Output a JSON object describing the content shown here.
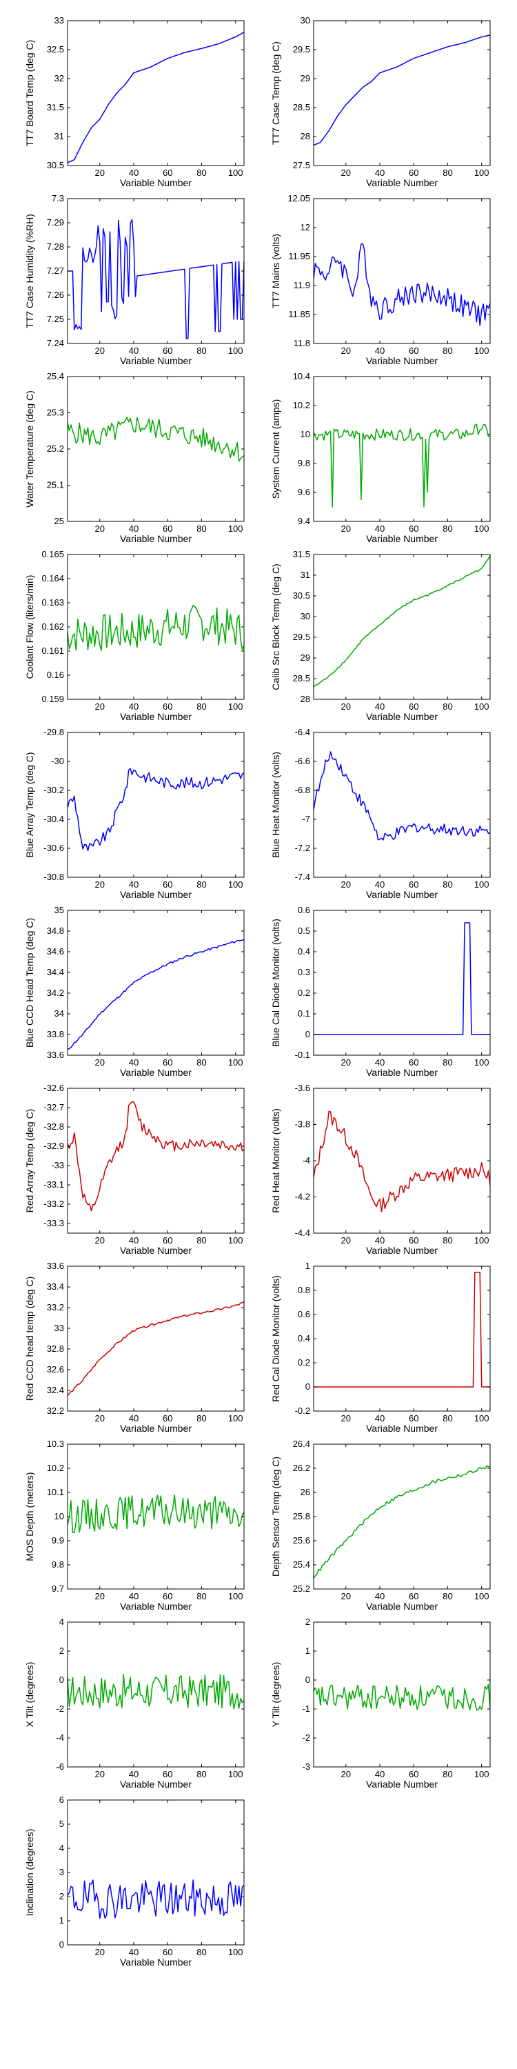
{
  "chart_data": [
    {
      "type": "line",
      "xlabel": "Variable Number",
      "ylabel": "TT7 Board Temp (deg C)",
      "color": "#0000ff",
      "xlim": [
        1,
        105
      ],
      "ylim": [
        30.5,
        33
      ],
      "xticks": [
        20,
        40,
        60,
        80,
        100
      ],
      "yticks": [
        30.5,
        31,
        31.5,
        32,
        32.5,
        33
      ],
      "ytick_labels": [
        "30.5",
        "31",
        "31.5",
        "32",
        "32.5",
        "33"
      ],
      "shape": "smooth",
      "xs": [
        1,
        5,
        10,
        15,
        20,
        25,
        30,
        35,
        40,
        50,
        60,
        70,
        80,
        90,
        100,
        105
      ],
      "ys": [
        30.55,
        30.6,
        30.9,
        31.15,
        31.3,
        31.55,
        31.75,
        31.9,
        32.1,
        32.2,
        32.35,
        32.45,
        32.52,
        32.6,
        32.72,
        32.8
      ]
    },
    {
      "type": "line",
      "xlabel": "Variable Number",
      "ylabel": "TT7 Case Temp (deg C)",
      "color": "#0000ff",
      "xlim": [
        1,
        105
      ],
      "ylim": [
        27.5,
        30
      ],
      "xticks": [
        20,
        40,
        60,
        80,
        100
      ],
      "yticks": [
        27.5,
        28,
        28.5,
        29,
        29.5,
        30
      ],
      "ytick_labels": [
        "27.5",
        "28",
        "28.5",
        "29",
        "29.5",
        "30"
      ],
      "shape": "smooth",
      "xs": [
        1,
        5,
        10,
        15,
        20,
        25,
        30,
        35,
        40,
        50,
        60,
        70,
        80,
        90,
        100,
        105
      ],
      "ys": [
        27.85,
        27.9,
        28.1,
        28.35,
        28.55,
        28.7,
        28.85,
        28.95,
        29.1,
        29.2,
        29.35,
        29.45,
        29.55,
        29.62,
        29.72,
        29.75
      ]
    },
    {
      "type": "line",
      "xlabel": "Variable Number",
      "ylabel": "TT7 Case Humidity (%RH)",
      "color": "#0000ff",
      "xlim": [
        1,
        105
      ],
      "ylim": [
        7.24,
        7.3
      ],
      "xticks": [
        20,
        40,
        60,
        80,
        100
      ],
      "yticks": [
        7.24,
        7.25,
        7.26,
        7.27,
        7.28,
        7.29,
        7.3
      ],
      "ytick_labels": [
        "7.24",
        "7.25",
        "7.26",
        "7.27",
        "7.28",
        "7.29",
        "7.3"
      ],
      "shape": "humidity",
      "seed": 3
    },
    {
      "type": "line",
      "xlabel": "Variable Number",
      "ylabel": "TT7 Mains  (volts)",
      "color": "#0000ff",
      "xlim": [
        1,
        105
      ],
      "ylim": [
        11.8,
        12.05
      ],
      "xticks": [
        20,
        40,
        60,
        80,
        100
      ],
      "yticks": [
        11.8,
        11.85,
        11.9,
        11.95,
        12,
        12.05
      ],
      "ytick_labels": [
        "11.8",
        "11.85",
        "11.9",
        "11.95",
        "12",
        "12.05"
      ],
      "shape": "noise",
      "seed": 4,
      "xs": [
        1,
        10,
        15,
        25,
        30,
        35,
        40,
        60,
        80,
        90,
        100,
        105
      ],
      "ys": [
        11.93,
        11.92,
        11.95,
        11.89,
        11.97,
        11.88,
        11.86,
        11.89,
        11.88,
        11.86,
        11.85,
        11.86
      ],
      "noise": 0.02
    },
    {
      "type": "line",
      "xlabel": "Variable Number",
      "ylabel": "Water Temperature (deg C)",
      "color": "#00aa00",
      "xlim": [
        1,
        105
      ],
      "ylim": [
        25,
        25.4
      ],
      "xticks": [
        20,
        40,
        60,
        80,
        100
      ],
      "yticks": [
        25,
        25.1,
        25.2,
        25.3,
        25.4
      ],
      "ytick_labels": [
        "25",
        "25.1",
        "25.2",
        "25.3",
        "25.4"
      ],
      "shape": "noise",
      "seed": 5,
      "xs": [
        1,
        20,
        40,
        60,
        80,
        100,
        105
      ],
      "ys": [
        25.25,
        25.23,
        25.27,
        25.25,
        25.23,
        25.2,
        25.18
      ],
      "noise": 0.03
    },
    {
      "type": "line",
      "xlabel": "Variable Number",
      "ylabel": "System Current (amps)",
      "color": "#00aa00",
      "xlim": [
        1,
        105
      ],
      "ylim": [
        9.4,
        10.4
      ],
      "xticks": [
        20,
        40,
        60,
        80,
        100
      ],
      "yticks": [
        9.4,
        9.6,
        9.8,
        10,
        10.2,
        10.4
      ],
      "ytick_labels": [
        "9.4",
        "9.6",
        "9.8",
        "10",
        "10.2",
        "10.4"
      ],
      "shape": "noise",
      "seed": 6,
      "xs": [
        1,
        50,
        90,
        100,
        105
      ],
      "ys": [
        10.0,
        10.0,
        10.0,
        10.05,
        10.0
      ],
      "noise": 0.04,
      "spikes": [
        [
          12,
          9.5
        ],
        [
          29,
          9.55
        ],
        [
          66,
          9.5
        ],
        [
          68,
          9.6
        ]
      ]
    },
    {
      "type": "line",
      "xlabel": "Variable Number",
      "ylabel": "Coolant Flow (liters/min)",
      "color": "#00aa00",
      "xlim": [
        1,
        105
      ],
      "ylim": [
        0.159,
        0.165
      ],
      "xticks": [
        20,
        40,
        60,
        80,
        100
      ],
      "yticks": [
        0.159,
        0.16,
        0.161,
        0.162,
        0.163,
        0.164,
        0.165
      ],
      "ytick_labels": [
        "0.159",
        "0.16",
        "0.161",
        "0.162",
        "0.163",
        "0.164",
        "0.165"
      ],
      "shape": "noise",
      "seed": 7,
      "xs": [
        1,
        40,
        80,
        105
      ],
      "ys": [
        0.1617,
        0.1618,
        0.1622,
        0.1618
      ],
      "noise": 0.0008
    },
    {
      "type": "line",
      "xlabel": "Variable Number",
      "ylabel": "Calib Src Block Temp (deg C)",
      "color": "#00aa00",
      "xlim": [
        1,
        105
      ],
      "ylim": [
        28,
        31.5
      ],
      "xticks": [
        20,
        40,
        60,
        80,
        100
      ],
      "yticks": [
        28,
        28.5,
        29,
        29.5,
        30,
        30.5,
        31,
        31.5
      ],
      "ytick_labels": [
        "28",
        "28.5",
        "29",
        "29.5",
        "30",
        "30.5",
        "31",
        "31.5"
      ],
      "shape": "smooth",
      "xs": [
        1,
        10,
        20,
        30,
        40,
        50,
        60,
        70,
        80,
        90,
        100,
        105
      ],
      "ys": [
        28.3,
        28.55,
        28.95,
        29.45,
        29.8,
        30.15,
        30.4,
        30.55,
        30.75,
        30.95,
        31.15,
        31.45
      ],
      "noise": 0.02,
      "seed": 8
    },
    {
      "type": "line",
      "xlabel": "Variable Number",
      "ylabel": "Blue Array Temp (deg C)",
      "color": "#0000ff",
      "xlim": [
        1,
        105
      ],
      "ylim": [
        -30.8,
        -29.8
      ],
      "xticks": [
        20,
        40,
        60,
        80,
        100
      ],
      "yticks": [
        -30.8,
        -30.6,
        -30.4,
        -30.2,
        -30,
        -29.8
      ],
      "ytick_labels": [
        "-30.8",
        "-30.6",
        "-30.4",
        "-30.2",
        "-30",
        "-29.8"
      ],
      "shape": "noise",
      "seed": 9,
      "xs": [
        1,
        5,
        10,
        15,
        25,
        35,
        38,
        45,
        60,
        80,
        100,
        105
      ],
      "ys": [
        -30.3,
        -30.25,
        -30.6,
        -30.6,
        -30.5,
        -30.2,
        -30.05,
        -30.1,
        -30.15,
        -30.15,
        -30.1,
        -30.1
      ],
      "noise": 0.04
    },
    {
      "type": "line",
      "xlabel": "Variable Number",
      "ylabel": "Blue Heat Monitor (volts)",
      "color": "#0000ff",
      "xlim": [
        1,
        105
      ],
      "ylim": [
        -7.4,
        -6.4
      ],
      "xticks": [
        20,
        40,
        60,
        80,
        100
      ],
      "yticks": [
        -7.4,
        -7.2,
        -7,
        -6.8,
        -6.6,
        -6.4
      ],
      "ytick_labels": [
        "-7.4",
        "-7.2",
        "-7",
        "-6.8",
        "-6.6",
        "-6.4"
      ],
      "shape": "noise",
      "seed": 10,
      "xs": [
        1,
        5,
        10,
        15,
        25,
        35,
        40,
        60,
        80,
        100,
        105
      ],
      "ys": [
        -6.9,
        -6.75,
        -6.55,
        -6.6,
        -6.8,
        -7.0,
        -7.15,
        -7.05,
        -7.07,
        -7.08,
        -7.1
      ],
      "noise": 0.04
    },
    {
      "type": "line",
      "xlabel": "Variable Number",
      "ylabel": "Blue CCD Head Temp (deg C)",
      "color": "#0000ff",
      "xlim": [
        1,
        105
      ],
      "ylim": [
        33.6,
        35
      ],
      "xticks": [
        20,
        40,
        60,
        80,
        100
      ],
      "yticks": [
        33.6,
        33.8,
        34,
        34.2,
        34.4,
        34.6,
        34.8,
        35
      ],
      "ytick_labels": [
        "33.6",
        "33.8",
        "34",
        "34.2",
        "34.4",
        "34.6",
        "34.8",
        "35"
      ],
      "shape": "smooth",
      "xs": [
        1,
        10,
        20,
        30,
        40,
        50,
        60,
        70,
        80,
        90,
        100,
        105
      ],
      "ys": [
        33.65,
        33.8,
        34.0,
        34.15,
        34.3,
        34.4,
        34.48,
        34.55,
        34.6,
        34.65,
        34.7,
        34.72
      ],
      "noise": 0.01,
      "seed": 11
    },
    {
      "type": "line",
      "xlabel": "Variable Number",
      "ylabel": "Blue Cal Diode Monitor (volts)",
      "color": "#0000ff",
      "xlim": [
        1,
        105
      ],
      "ylim": [
        -0.1,
        0.6
      ],
      "xticks": [
        20,
        40,
        60,
        80,
        100
      ],
      "yticks": [
        -0.1,
        0,
        0.1,
        0.2,
        0.3,
        0.4,
        0.5,
        0.6
      ],
      "ytick_labels": [
        "-0.1",
        "0",
        "0.1",
        "0.2",
        "0.3",
        "0.4",
        "0.5",
        "0.6"
      ],
      "shape": "pulse",
      "baseline": 0,
      "pulse": [
        90,
        93,
        0.54
      ]
    },
    {
      "type": "line",
      "xlabel": "Variable Number",
      "ylabel": "Red Array Temp (deg C)",
      "color": "#cc0000",
      "xlim": [
        1,
        105
      ],
      "ylim": [
        -33.35,
        -32.6
      ],
      "xticks": [
        20,
        40,
        60,
        80,
        100
      ],
      "yticks": [
        -33.3,
        -33.2,
        -33.1,
        -33,
        -32.9,
        -32.8,
        -32.7,
        -32.6
      ],
      "ytick_labels": [
        "-33.3",
        "-33.2",
        "-33.1",
        "-33",
        "-32.9",
        "-32.8",
        "-32.7",
        "-32.6"
      ],
      "shape": "noise",
      "seed": 12,
      "xs": [
        1,
        5,
        10,
        15,
        25,
        35,
        38,
        45,
        60,
        80,
        100,
        105
      ],
      "ys": [
        -32.9,
        -32.85,
        -33.15,
        -33.25,
        -33.0,
        -32.85,
        -32.65,
        -32.8,
        -32.9,
        -32.88,
        -32.9,
        -32.9
      ],
      "noise": 0.03
    },
    {
      "type": "line",
      "xlabel": "Variable Number",
      "ylabel": "Red Heat Monitor (volts)",
      "color": "#cc0000",
      "xlim": [
        1,
        105
      ],
      "ylim": [
        -4.4,
        -3.6
      ],
      "xticks": [
        20,
        40,
        60,
        80,
        100
      ],
      "yticks": [
        -4.4,
        -4.2,
        -4,
        -3.8,
        -3.6
      ],
      "ytick_labels": [
        "-4.4",
        "-4.2",
        "-4",
        "-3.8",
        "-3.6"
      ],
      "shape": "noise",
      "seed": 13,
      "xs": [
        1,
        5,
        10,
        15,
        25,
        35,
        40,
        60,
        80,
        100,
        105
      ],
      "ys": [
        -4.1,
        -3.95,
        -3.75,
        -3.8,
        -3.95,
        -4.2,
        -4.25,
        -4.1,
        -4.08,
        -4.05,
        -4.1
      ],
      "noise": 0.04
    },
    {
      "type": "line",
      "xlabel": "Variable Number",
      "ylabel": "Red CCD head temp (deg C)",
      "color": "#cc0000",
      "xlim": [
        1,
        105
      ],
      "ylim": [
        32.2,
        33.6
      ],
      "xticks": [
        20,
        40,
        60,
        80,
        100
      ],
      "yticks": [
        32.2,
        32.4,
        32.6,
        32.8,
        33,
        33.2,
        33.4,
        33.6
      ],
      "ytick_labels": [
        "32.2",
        "32.4",
        "32.6",
        "32.8",
        "33",
        "33.2",
        "33.4",
        "33.6"
      ],
      "shape": "smooth",
      "xs": [
        1,
        10,
        20,
        30,
        40,
        50,
        60,
        70,
        80,
        90,
        100,
        105
      ],
      "ys": [
        32.35,
        32.5,
        32.7,
        32.85,
        32.98,
        33.03,
        33.08,
        33.12,
        33.15,
        33.18,
        33.22,
        33.25
      ],
      "noise": 0.01,
      "seed": 14
    },
    {
      "type": "line",
      "xlabel": "Variable Number",
      "ylabel": "Red Cal Diode Monitor (volts)",
      "color": "#cc0000",
      "xlim": [
        1,
        105
      ],
      "ylim": [
        -0.2,
        1
      ],
      "xticks": [
        20,
        40,
        60,
        80,
        100
      ],
      "yticks": [
        -0.2,
        0,
        0.2,
        0.4,
        0.6,
        0.8,
        1
      ],
      "ytick_labels": [
        "-0.2",
        "0",
        "0.2",
        "0.4",
        "0.6",
        "0.8",
        "1"
      ],
      "shape": "pulse",
      "baseline": 0,
      "pulse": [
        96,
        99,
        0.95
      ]
    },
    {
      "type": "line",
      "xlabel": "Variable Number",
      "ylabel": "MOS Depth  (meters)",
      "color": "#00aa00",
      "xlim": [
        1,
        105
      ],
      "ylim": [
        9.7,
        10.3
      ],
      "xticks": [
        20,
        40,
        60,
        80,
        100
      ],
      "yticks": [
        9.7,
        9.8,
        9.9,
        10,
        10.1,
        10.2,
        10.3
      ],
      "ytick_labels": [
        "9.7",
        "9.8",
        "9.9",
        "10",
        "10.1",
        "10.2",
        "10.3"
      ],
      "shape": "noise",
      "seed": 15,
      "xs": [
        1,
        40,
        80,
        105
      ],
      "ys": [
        10.0,
        10.02,
        10.02,
        10.0
      ],
      "noise": 0.07
    },
    {
      "type": "line",
      "xlabel": "Variable Number",
      "ylabel": "Depth Sensor Temp (deg C)",
      "color": "#00aa00",
      "xlim": [
        1,
        105
      ],
      "ylim": [
        25.2,
        26.4
      ],
      "xticks": [
        20,
        40,
        60,
        80,
        100
      ],
      "yticks": [
        25.2,
        25.4,
        25.6,
        25.8,
        26,
        26.2,
        26.4
      ],
      "ytick_labels": [
        "25.2",
        "25.4",
        "25.6",
        "25.8",
        "26",
        "26.2",
        "26.4"
      ],
      "shape": "smooth",
      "xs": [
        1,
        10,
        20,
        30,
        40,
        50,
        60,
        70,
        80,
        90,
        100,
        105
      ],
      "ys": [
        25.3,
        25.45,
        25.6,
        25.75,
        25.88,
        25.96,
        26.02,
        26.08,
        26.12,
        26.15,
        26.2,
        26.22
      ],
      "noise": 0.015,
      "seed": 16
    },
    {
      "type": "line",
      "xlabel": "Variable Number",
      "ylabel": "X Tilt  (degrees)",
      "color": "#00aa00",
      "xlim": [
        1,
        105
      ],
      "ylim": [
        -6,
        4
      ],
      "xticks": [
        20,
        40,
        60,
        80,
        100
      ],
      "yticks": [
        -6,
        -4,
        -2,
        0,
        2,
        4
      ],
      "ytick_labels": [
        "-6",
        "-4",
        "-2",
        "0",
        "2",
        "4"
      ],
      "shape": "noise",
      "seed": 17,
      "xs": [
        1,
        105
      ],
      "ys": [
        -0.8,
        -0.8
      ],
      "noise": 1.2
    },
    {
      "type": "line",
      "xlabel": "Variable Number",
      "ylabel": "Y Tilt  (degrees)",
      "color": "#00aa00",
      "xlim": [
        1,
        105
      ],
      "ylim": [
        -3,
        2
      ],
      "xticks": [
        20,
        40,
        60,
        80,
        100
      ],
      "yticks": [
        -3,
        -2,
        -1,
        0,
        1,
        2
      ],
      "ytick_labels": [
        "-3",
        "-2",
        "-1",
        "0",
        "1",
        "2"
      ],
      "shape": "noise",
      "seed": 18,
      "xs": [
        1,
        105
      ],
      "ys": [
        -0.6,
        -0.6
      ],
      "noise": 0.45
    },
    {
      "type": "line",
      "xlabel": "Variable Number",
      "ylabel": "Inclination  (degrees)",
      "color": "#0000ff",
      "xlim": [
        1,
        105
      ],
      "ylim": [
        0,
        6
      ],
      "xticks": [
        20,
        40,
        60,
        80,
        100
      ],
      "yticks": [
        0,
        1,
        2,
        3,
        4,
        5,
        6
      ],
      "ytick_labels": [
        "0",
        "1",
        "2",
        "3",
        "4",
        "5",
        "6"
      ],
      "shape": "noise",
      "seed": 19,
      "xs": [
        1,
        105
      ],
      "ys": [
        1.9,
        1.9
      ],
      "noise": 0.8,
      "floor": 0.2
    }
  ]
}
